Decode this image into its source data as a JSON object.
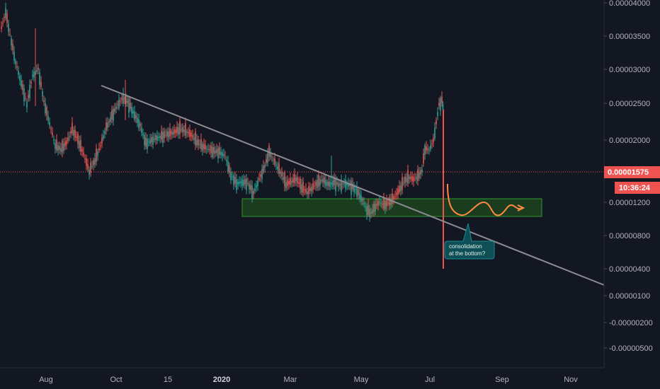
{
  "chart_data": {
    "type": "candlestick",
    "y_ticks": [
      "0.00004000",
      "0.00003500",
      "0.00003000",
      "0.00002500",
      "0.00002000",
      "0.00001200",
      "0.00000800",
      "0.00000400",
      "0.00000100",
      "-0.00000200",
      "-0.00000500"
    ],
    "x_ticks": [
      {
        "label": "Aug",
        "bold": false
      },
      {
        "label": "Oct",
        "bold": false
      },
      {
        "label": "15",
        "bold": false
      },
      {
        "label": "2020",
        "bold": true
      },
      {
        "label": "Mar",
        "bold": false
      },
      {
        "label": "May",
        "bold": false
      },
      {
        "label": "Jul",
        "bold": false
      },
      {
        "label": "Sep",
        "bold": false
      },
      {
        "label": "Nov",
        "bold": false
      }
    ],
    "current_price": "0.00001575",
    "countdown": "10:36:24",
    "annotation": [
      "consolidation",
      "at the bottom?"
    ],
    "colors": {
      "background": "#131722",
      "up": "#26a69a",
      "down": "#ef5350",
      "trendline": "#8b8d93",
      "zone_fill": "#1f4a1f",
      "zone_border": "#2e9b2e",
      "projection": "#ff8a3d",
      "callout": "#0d4f55",
      "price_line": "#ef5350"
    }
  }
}
